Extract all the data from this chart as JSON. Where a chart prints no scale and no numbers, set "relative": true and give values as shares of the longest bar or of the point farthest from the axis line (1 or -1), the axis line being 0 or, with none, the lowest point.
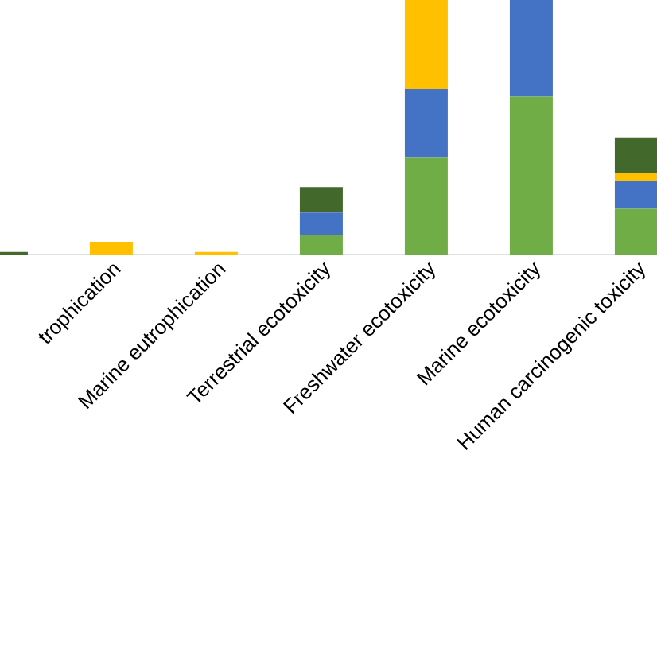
{
  "chart_data": {
    "type": "bar",
    "stacked": true,
    "relative": true,
    "categories": [
      null,
      "trophication",
      "Marine eutrophication",
      "Terrestrial ecotoxicity",
      "Freshwater ecotoxicity",
      "Marine ecotoxicity",
      "Human carcinogenic toxicity"
    ],
    "series": [
      {
        "color": "#70ad47",
        "values": [
          0,
          0,
          0,
          0.075,
          0.38,
          0.62,
          0.18
        ]
      },
      {
        "color": "#4472c4",
        "values": [
          0,
          0,
          0,
          0.09,
          0.27,
          0.38,
          0.11
        ]
      },
      {
        "color": "#ffc000",
        "values": [
          0,
          0.05,
          0.01,
          0,
          0.35,
          0,
          0.03
        ]
      },
      {
        "color": "#43682b",
        "values": [
          0.01,
          0,
          0,
          0.1,
          0,
          0,
          0.14
        ]
      }
    ]
  }
}
